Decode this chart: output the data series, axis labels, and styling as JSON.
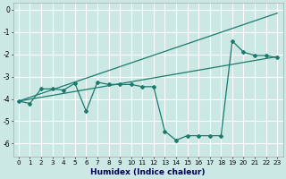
{
  "xlabel": "Humidex (Indice chaleur)",
  "ylabel": "",
  "xlim": [
    -0.5,
    23.5
  ],
  "ylim": [
    -6.6,
    0.3
  ],
  "yticks": [
    0,
    -1,
    -2,
    -3,
    -4,
    -5,
    -6
  ],
  "xticks": [
    0,
    1,
    2,
    3,
    4,
    5,
    6,
    7,
    8,
    9,
    10,
    11,
    12,
    13,
    14,
    15,
    16,
    17,
    18,
    19,
    20,
    21,
    22,
    23
  ],
  "bg_color": "#cce8e4",
  "grid_color": "#ffffff",
  "line_color": "#1a7a6e",
  "line1_x": [
    0,
    1,
    2,
    3,
    4,
    5,
    6,
    7,
    8,
    9,
    10,
    11,
    12,
    13,
    14,
    15,
    16,
    17,
    18,
    19,
    20,
    21,
    22,
    23
  ],
  "line1_y": [
    -4.1,
    -4.2,
    -3.55,
    -3.55,
    -3.6,
    -3.3,
    -4.55,
    -3.25,
    -3.35,
    -3.35,
    -3.35,
    -3.45,
    -3.45,
    -5.45,
    -5.85,
    -5.65,
    -5.65,
    -5.65,
    -5.65,
    -1.4,
    -1.9,
    -2.05,
    -2.05,
    -2.15
  ],
  "line2_x": [
    0,
    23
  ],
  "line2_y": [
    -4.1,
    -2.1
  ],
  "line3_x": [
    0,
    23
  ],
  "line3_y": [
    -4.1,
    -0.15
  ],
  "fontsize_label": 6.5,
  "fontsize_tick": 5.5
}
